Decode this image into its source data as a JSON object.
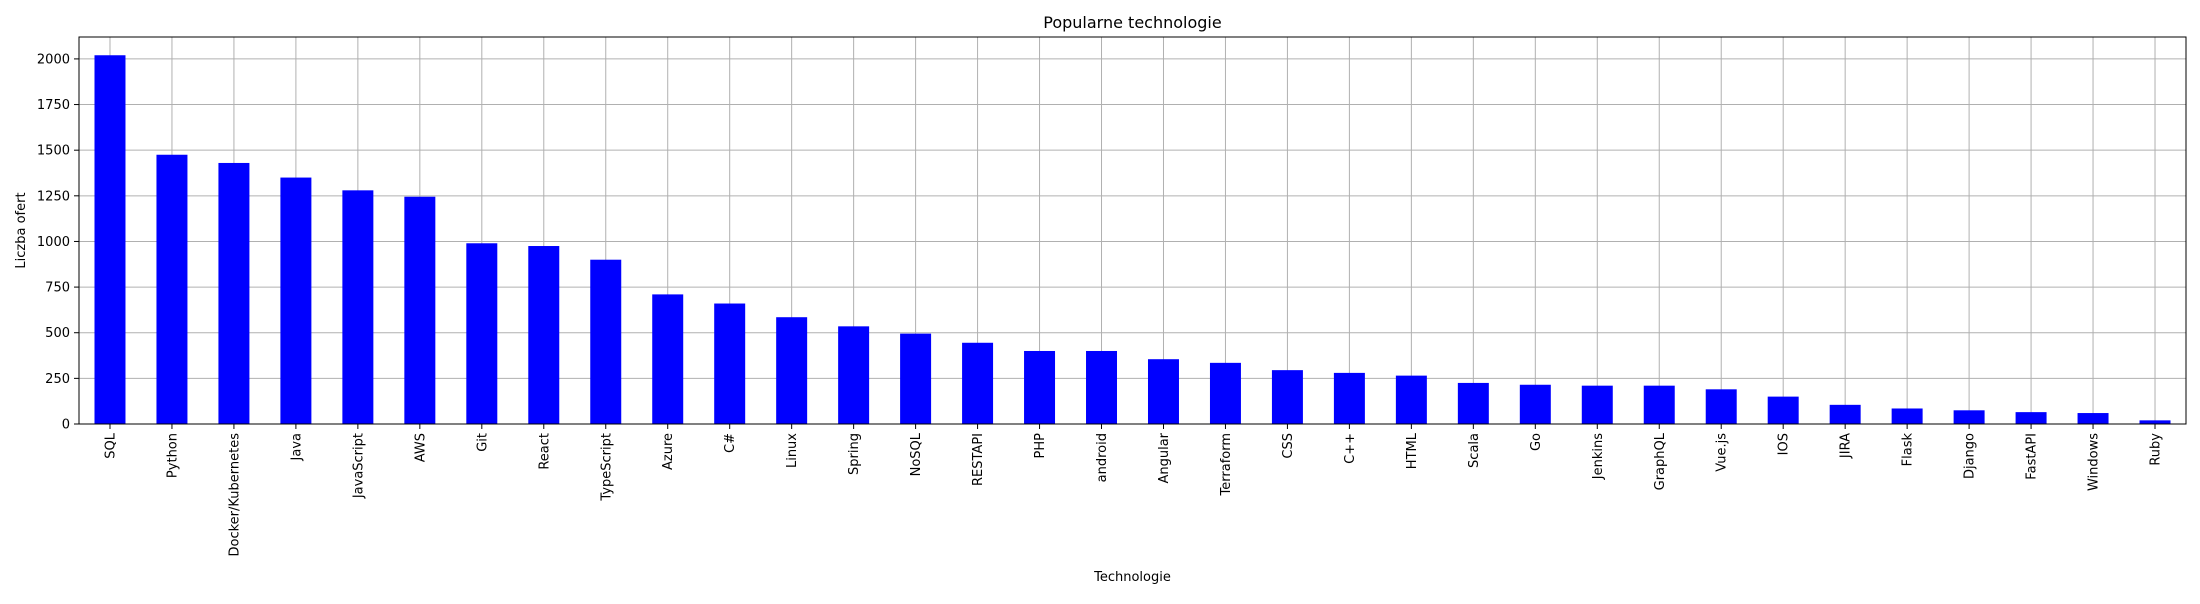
{
  "chart_data": {
    "type": "bar",
    "title": "Popularne technologie",
    "xlabel": "Technologie",
    "ylabel": "Liczba ofert",
    "ylim": [
      0,
      2120
    ],
    "yticks": [
      0,
      250,
      500,
      750,
      1000,
      1250,
      1500,
      1750,
      2000
    ],
    "grid": true,
    "bar_color": "#0000ff",
    "categories": [
      "SQL",
      "Python",
      "Docker/Kubernetes",
      "Java",
      "JavaScript",
      "AWS",
      "Git",
      "React",
      "TypeScript",
      "Azure",
      "C#",
      "Linux",
      "Spring",
      "NoSQL",
      "RESTAPI",
      "PHP",
      "android",
      "Angular",
      "Terraform",
      "CSS",
      "C++",
      "HTML",
      "Scala",
      "Go",
      "Jenkins",
      "GraphQL",
      "Vue.js",
      "IOS",
      "JIRA",
      "Flask",
      "Django",
      "FastAPI",
      "Windows",
      "Ruby"
    ],
    "values": [
      2020,
      1475,
      1430,
      1350,
      1280,
      1245,
      990,
      975,
      900,
      710,
      660,
      585,
      535,
      495,
      445,
      400,
      400,
      355,
      335,
      295,
      280,
      265,
      225,
      215,
      210,
      210,
      190,
      150,
      105,
      85,
      75,
      65,
      60,
      20
    ]
  }
}
